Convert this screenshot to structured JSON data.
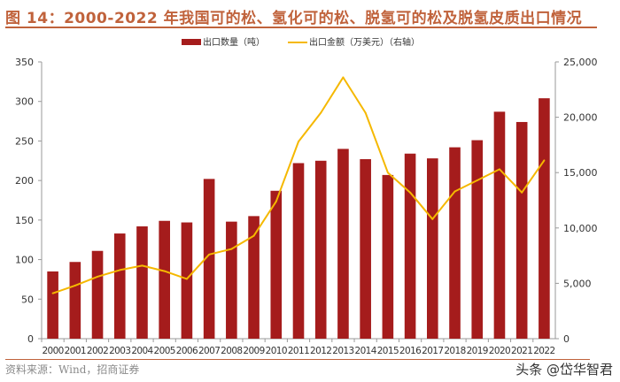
{
  "title": "图 14：2000-2022 年我国可的松、氢化可的松、脱氢可的松及脱氢皮质出口情况",
  "source": "资料来源：Wind，招商证券",
  "watermark": "头条 @岱华智君",
  "chart_data": {
    "type": "bar+line",
    "title": "图 14：2000-2022 年我国可的松、氢化可的松、脱氢可的松及脱氢皮质出口情况",
    "categories": [
      "2000",
      "2001",
      "2002",
      "2003",
      "2004",
      "2005",
      "2006",
      "2007",
      "2008",
      "2009",
      "2010",
      "2011",
      "2012",
      "2013",
      "2014",
      "2015",
      "2016",
      "2017",
      "2018",
      "2019",
      "2020",
      "2021",
      "2022"
    ],
    "series": [
      {
        "name": "出口数量（吨）",
        "type": "bar",
        "axis": "left",
        "color": "#a51c1c",
        "values": [
          85,
          97,
          111,
          133,
          142,
          149,
          147,
          202,
          148,
          155,
          187,
          222,
          225,
          240,
          227,
          207,
          234,
          228,
          242,
          251,
          287,
          274,
          304
        ]
      },
      {
        "name": "出口金额（万美元）（右轴）",
        "type": "line",
        "axis": "right",
        "color": "#f5b800",
        "values": [
          4100,
          4800,
          5600,
          6200,
          6600,
          6100,
          5400,
          7600,
          8100,
          9300,
          12400,
          17800,
          20400,
          23600,
          20400,
          15000,
          13200,
          10800,
          13300,
          14300,
          15300,
          13200,
          16100
        ]
      }
    ],
    "y_left": {
      "ylim": [
        0,
        350
      ],
      "ticks": [
        "0",
        "50",
        "100",
        "150",
        "200",
        "250",
        "300",
        "350"
      ]
    },
    "y_right": {
      "ylim": [
        0,
        25000
      ],
      "ticks": [
        "0",
        "5,000",
        "10,000",
        "15,000",
        "20,000",
        "25,000"
      ]
    },
    "grid": false,
    "legend": "top-center"
  }
}
